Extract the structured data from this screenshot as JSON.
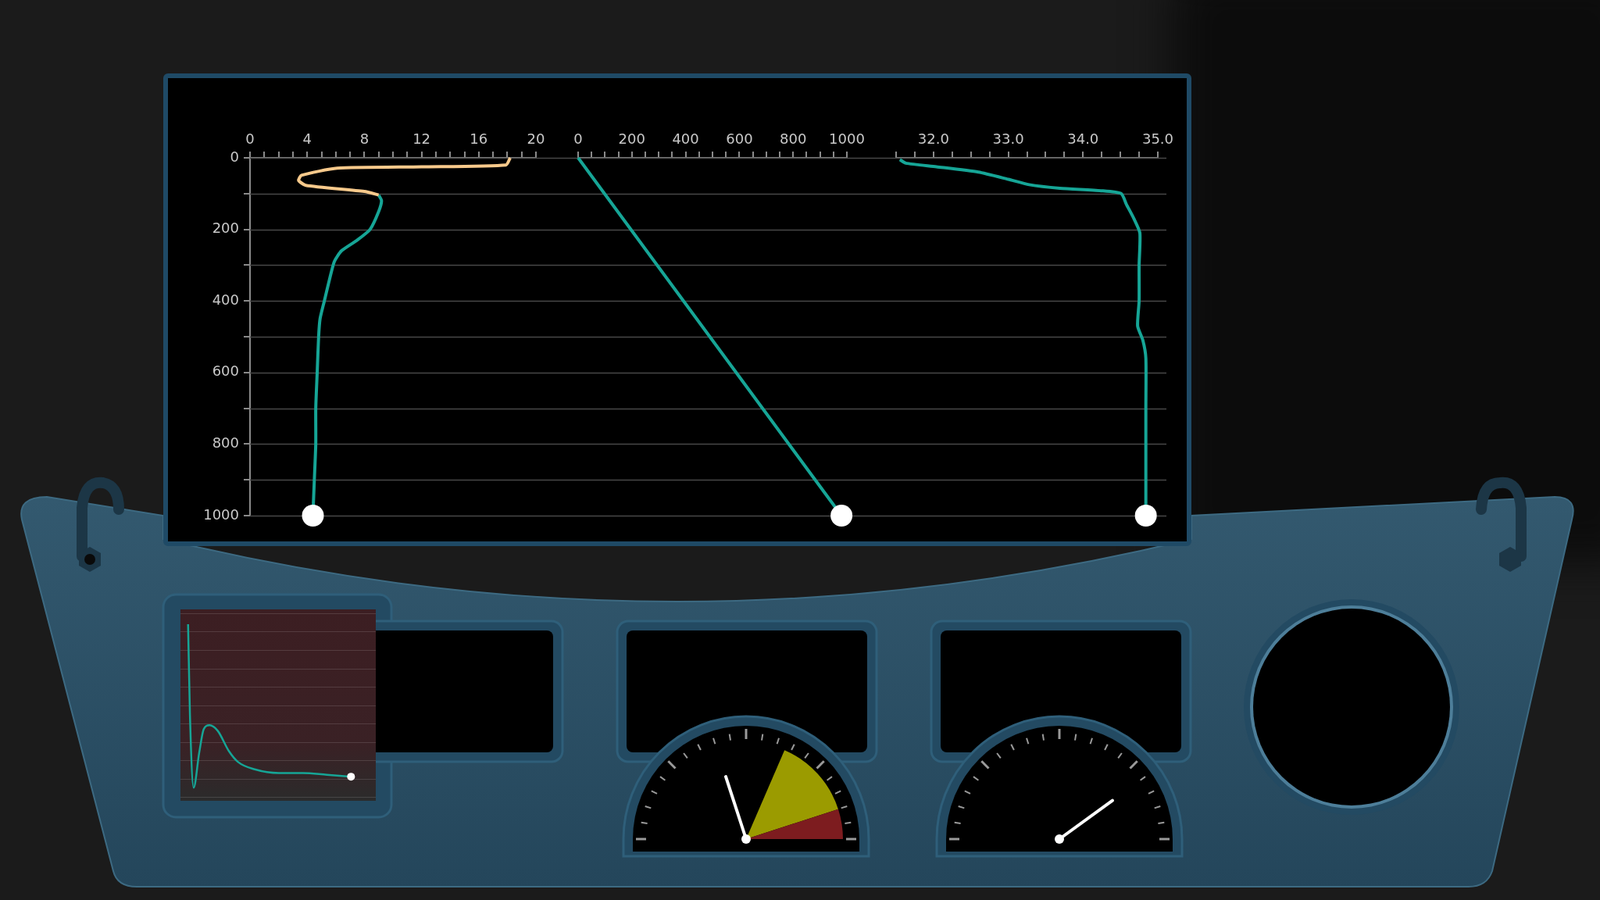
{
  "chart_data": [
    {
      "type": "line",
      "xlim": [
        0,
        20
      ],
      "xticks": [
        0,
        4,
        8,
        12,
        16,
        20
      ],
      "ylim": [
        1000,
        0
      ],
      "yticks": [
        0,
        200,
        400,
        600,
        800,
        1000
      ],
      "grid": true,
      "series": [
        {
          "color": "#f7c98b",
          "x": [
            18.2,
            17.9,
            12.0,
            6.1,
            3.6,
            3.4,
            3.9,
            8.0,
            9.0
          ],
          "y": [
            0,
            20,
            25,
            29,
            49,
            63,
            77,
            94,
            104
          ]
        },
        {
          "color": "#16a596",
          "marker": "end",
          "x": [
            9.0,
            9.2,
            9.0,
            8.4,
            7.5,
            6.4,
            5.9,
            5.5,
            5.2,
            4.9,
            4.8,
            4.7,
            4.6,
            4.6,
            4.5,
            4.4
          ],
          "y": [
            104,
            120,
            150,
            200,
            230,
            260,
            290,
            350,
            400,
            450,
            500,
            600,
            700,
            800,
            900,
            1000
          ]
        }
      ]
    },
    {
      "type": "line",
      "xlim": [
        0,
        1000
      ],
      "xticks": [
        0,
        200,
        400,
        600,
        800,
        1000
      ],
      "ylim": [
        1000,
        0
      ],
      "yticks": [
        0,
        200,
        400,
        600,
        800,
        1000
      ],
      "grid": true,
      "tick_labels": "x",
      "series": [
        {
          "color": "#16a596",
          "marker": "end",
          "x": [
            0,
            980
          ],
          "y": [
            0,
            1000
          ]
        }
      ]
    },
    {
      "type": "line",
      "xlim": [
        31.5,
        35.0
      ],
      "xticks": [
        {
          "value": 32,
          "label": "32.0"
        },
        {
          "value": 33,
          "label": "33.0"
        },
        {
          "value": 34,
          "label": "34.0"
        },
        {
          "value": 35,
          "label": "35.0"
        }
      ],
      "ylim": [
        1000,
        0
      ],
      "yticks": [
        0,
        200,
        400,
        600,
        800,
        1000
      ],
      "grid": true,
      "tick_labels": "x",
      "series": [
        {
          "color": "#16a596",
          "marker": "end",
          "x": [
            31.55,
            31.63,
            32.04,
            32.6,
            33.0,
            33.28,
            33.69,
            34.24,
            34.51,
            34.58,
            34.68,
            34.76,
            34.75,
            34.75,
            34.73,
            34.8,
            34.84,
            34.84,
            34.84
          ],
          "y": [
            5,
            15,
            25,
            40,
            60,
            75,
            85,
            92,
            100,
            130,
            170,
            210,
            300,
            400,
            470,
            510,
            560,
            700,
            1000
          ]
        }
      ]
    },
    {
      "type": "line",
      "xlim": [
        0,
        100
      ],
      "ylim": [
        0,
        100
      ],
      "yticks": [
        0,
        10,
        20,
        30,
        40,
        50,
        60,
        70,
        80,
        90,
        100
      ],
      "grid": true,
      "tick_labels": false,
      "series": [
        {
          "color": "#16a596",
          "marker": "end",
          "x": [
            2,
            3,
            5,
            8,
            10.5,
            13.6,
            18,
            24,
            29,
            38,
            51,
            64,
            77,
            90
          ],
          "y": [
            94,
            45,
            5,
            24,
            37,
            39,
            36,
            25,
            19,
            15,
            13,
            13,
            12,
            11
          ]
        }
      ]
    }
  ],
  "gauges": [
    {
      "range": [
        0,
        100
      ],
      "value": 40,
      "zones": [
        {
          "from": 63,
          "to": 90,
          "color": "#9b9b00"
        },
        {
          "from": 90,
          "to": 100,
          "color": "#7d1c1f"
        }
      ]
    },
    {
      "range": [
        0,
        100
      ],
      "value": 80
    }
  ]
}
